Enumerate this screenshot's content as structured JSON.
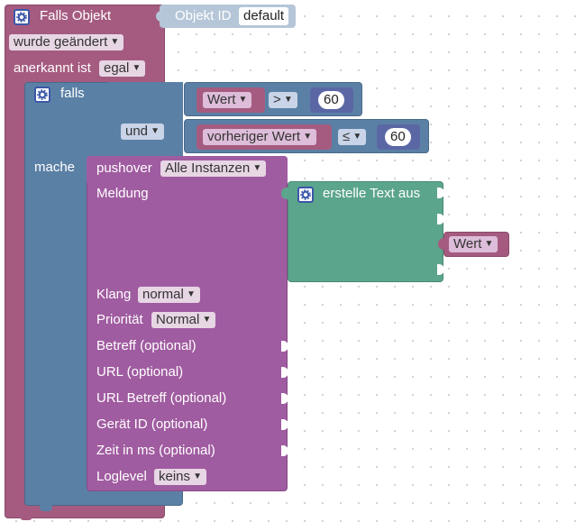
{
  "trigger": {
    "title": "Falls Objekt",
    "object_id_label": "Objekt ID",
    "object_id_value": "default",
    "changed_dropdown": "wurde geändert",
    "ack_label": "anerkannt ist",
    "ack_dropdown": "egal"
  },
  "if_block": {
    "if_label": "falls",
    "do_label": "mache",
    "logic_op": "und",
    "condition1": {
      "var": "Wert",
      "op": ">",
      "value": "60"
    },
    "condition2": {
      "var": "vorheriger Wert",
      "op": "≤",
      "value": "60"
    }
  },
  "pushover": {
    "label": "pushover",
    "instance": "Alle Instanzen",
    "message_label": "Meldung",
    "sound_label": "Klang",
    "sound_value": "normal",
    "priority_label": "Priorität",
    "priority_value": "Normal",
    "subject_label": "Betreff (optional)",
    "url_label": "URL (optional)",
    "url_title_label": "URL Betreff (optional)",
    "device_label": "Gerät ID (optional)",
    "time_label": "Zeit in ms (optional)",
    "loglevel_label": "Loglevel",
    "loglevel_value": "keins"
  },
  "text_join": {
    "label": "erstelle Text aus",
    "item": "Wert"
  },
  "icons": {
    "gear": "gear-icon",
    "dropdown": "chevron-down-icon"
  },
  "colors": {
    "trigger": "#a55b80",
    "logic": "#5b80a5",
    "pushover": "#a05ca0",
    "text": "#5ba58c"
  }
}
